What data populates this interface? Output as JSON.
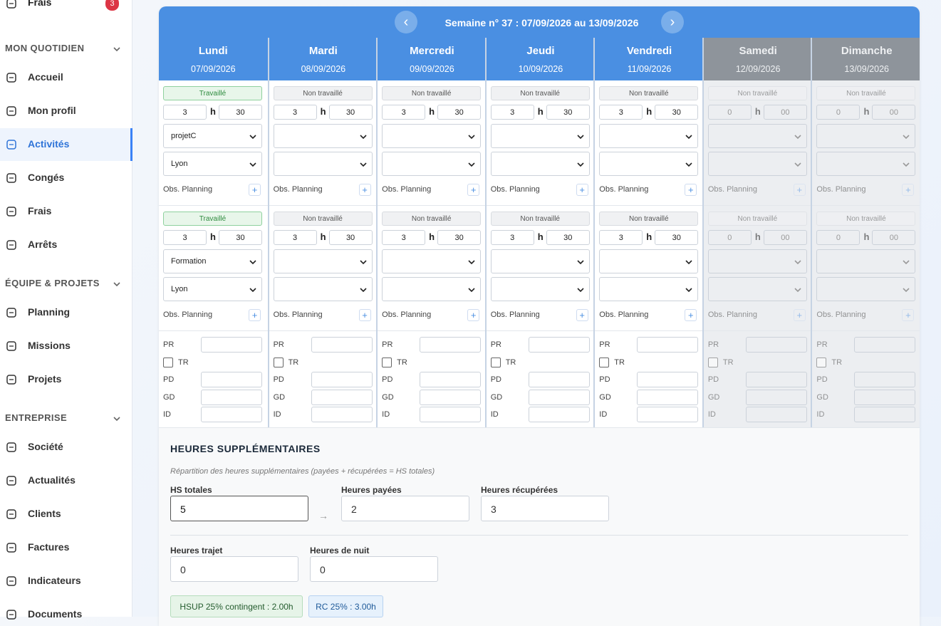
{
  "sidebar": {
    "top_item": {
      "label": "Frais",
      "badge": "3"
    },
    "sections": [
      {
        "title": "MON QUOTIDIEN",
        "items": [
          {
            "label": "Accueil"
          },
          {
            "label": "Mon profil"
          },
          {
            "label": "Activités",
            "active": true
          },
          {
            "label": "Congés"
          },
          {
            "label": "Frais"
          },
          {
            "label": "Arrêts"
          }
        ]
      },
      {
        "title": "ÉQUIPE & PROJETS",
        "items": [
          {
            "label": "Planning"
          },
          {
            "label": "Missions"
          },
          {
            "label": "Projets"
          }
        ]
      },
      {
        "title": "ENTREPRISE",
        "items": [
          {
            "label": "Société"
          },
          {
            "label": "Actualités"
          },
          {
            "label": "Clients"
          },
          {
            "label": "Factures"
          },
          {
            "label": "Indicateurs"
          },
          {
            "label": "Documents"
          }
        ]
      }
    ]
  },
  "week": {
    "title": "Semaine n° 37 : 07/09/2026 au 13/09/2026",
    "prev": "‹",
    "next": "›",
    "labels": {
      "h": "h",
      "obs": "Obs. Planning",
      "plus": "+"
    },
    "fields": [
      "PR",
      "TR",
      "PD",
      "GD",
      "ID"
    ],
    "days": [
      {
        "name": "Lundi",
        "date": "07/09/2026",
        "slots": [
          {
            "status": "Travaillé",
            "worked": true,
            "hours": 3,
            "minutes": 30,
            "project": "projetC",
            "location": "Lyon"
          },
          {
            "status": "Travaillé",
            "worked": true,
            "hours": 3,
            "minutes": 30,
            "project": "Formation",
            "location": "Lyon"
          }
        ]
      },
      {
        "name": "Mardi",
        "date": "08/09/2026",
        "slots": [
          {
            "status": "Non travaillé",
            "hours": 3,
            "minutes": 30
          },
          {
            "status": "Non travaillé",
            "hours": 3,
            "minutes": 30
          }
        ]
      },
      {
        "name": "Mercredi",
        "date": "09/09/2026",
        "slots": [
          {
            "status": "Non travaillé",
            "hours": 3,
            "minutes": 30
          },
          {
            "status": "Non travaillé",
            "hours": 3,
            "minutes": 30
          }
        ]
      },
      {
        "name": "Jeudi",
        "date": "10/09/2026",
        "slots": [
          {
            "status": "Non travaillé",
            "hours": 3,
            "minutes": 30
          },
          {
            "status": "Non travaillé",
            "hours": 3,
            "minutes": 30
          }
        ]
      },
      {
        "name": "Vendredi",
        "date": "11/09/2026",
        "slots": [
          {
            "status": "Non travaillé",
            "hours": 3,
            "minutes": 30
          },
          {
            "status": "Non travaillé",
            "hours": 3,
            "minutes": 30
          }
        ]
      },
      {
        "name": "Samedi",
        "date": "12/09/2026",
        "weekend": true,
        "slots": [
          {
            "status": "Non travaillé",
            "hours": 0,
            "minutes": "00"
          },
          {
            "status": "Non travaillé",
            "hours": 0,
            "minutes": "00"
          }
        ]
      },
      {
        "name": "Dimanche",
        "date": "13/09/2026",
        "weekend": true,
        "slots": [
          {
            "status": "Non travaillé",
            "hours": 0,
            "minutes": "00"
          },
          {
            "status": "Non travaillé",
            "hours": 0,
            "minutes": "00"
          }
        ]
      }
    ]
  },
  "overtime": {
    "title": "HEURES SUPPLÉMENTAIRES",
    "subtitle": "Répartition des heures supplémentaires (payées + récupérées = HS totales)",
    "arrow": "→",
    "total": {
      "label": "HS totales",
      "value": 5
    },
    "paid": {
      "label": "Heures payées",
      "value": 2
    },
    "recovered": {
      "label": "Heures récupérées",
      "value": 3
    },
    "travel": {
      "label": "Heures trajet",
      "value": 0
    },
    "night": {
      "label": "Heures de nuit",
      "value": 0
    },
    "badges": [
      "HSUP 25% contingent : 2.00h",
      "RC 25% : 3.00h"
    ]
  }
}
